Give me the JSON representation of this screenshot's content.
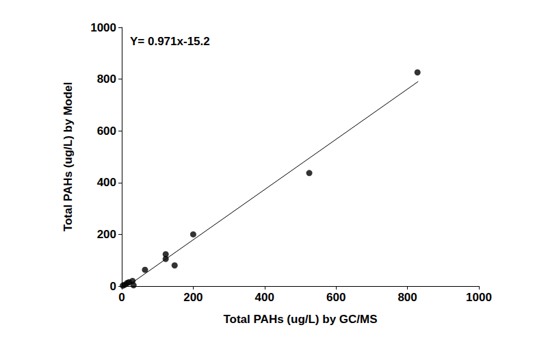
{
  "chart_data": {
    "type": "scatter",
    "xlabel": "Total PAHs (ug/L) by GC/MS",
    "ylabel": "Total PAHs (ug/L) by Model",
    "annotation": "Y= 0.971x-15.2",
    "xlim": [
      0,
      1000
    ],
    "xticks": [
      0,
      200,
      400,
      600,
      800,
      1000
    ],
    "ylim": [
      0,
      1000
    ],
    "yticks": [
      0,
      200,
      400,
      600,
      800,
      1000
    ],
    "grid": false,
    "series": [
      {
        "type": "scatter",
        "color": "#000000",
        "marker": "circle",
        "x": [
          3,
          8,
          15,
          20,
          30,
          33,
          65,
          123,
          123,
          148,
          200,
          525,
          828
        ],
        "values": [
          2,
          5,
          12,
          15,
          20,
          3,
          63,
          123,
          105,
          80,
          200,
          437,
          826
        ]
      },
      {
        "type": "line",
        "color": "#000000",
        "line_style": "solid",
        "x": [
          15.7,
          830
        ],
        "values": [
          0,
          790.7
        ]
      }
    ]
  }
}
